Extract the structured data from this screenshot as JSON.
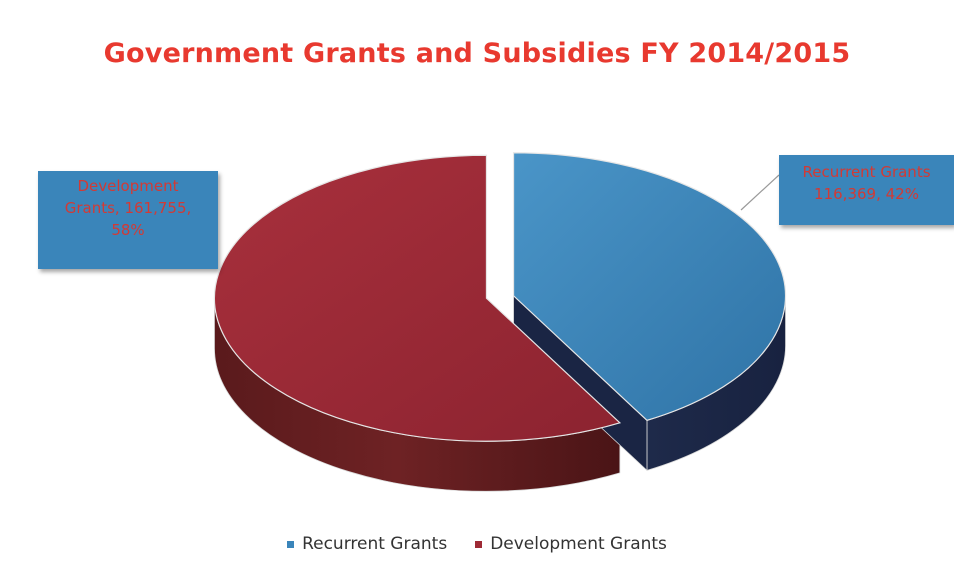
{
  "chart_data": {
    "type": "pie",
    "title": "Government Grants and Subsidies FY 2014/2015",
    "style": "3d-exploded",
    "slices": [
      {
        "name": "Recurrent Grants",
        "value": 116369,
        "percent": 42,
        "color": "#3a85ba",
        "label_lines": [
          "Recurrent Grants",
          "116,369, 42%"
        ]
      },
      {
        "name": "Development Grants",
        "value": 161755,
        "percent": 58,
        "color": "#9e2a35",
        "label_lines": [
          "Development",
          "Grants, 161,755,",
          "58%"
        ]
      }
    ],
    "legend": {
      "placement": "bottom",
      "entries": [
        "Recurrent Grants",
        "Development Grants"
      ]
    }
  }
}
